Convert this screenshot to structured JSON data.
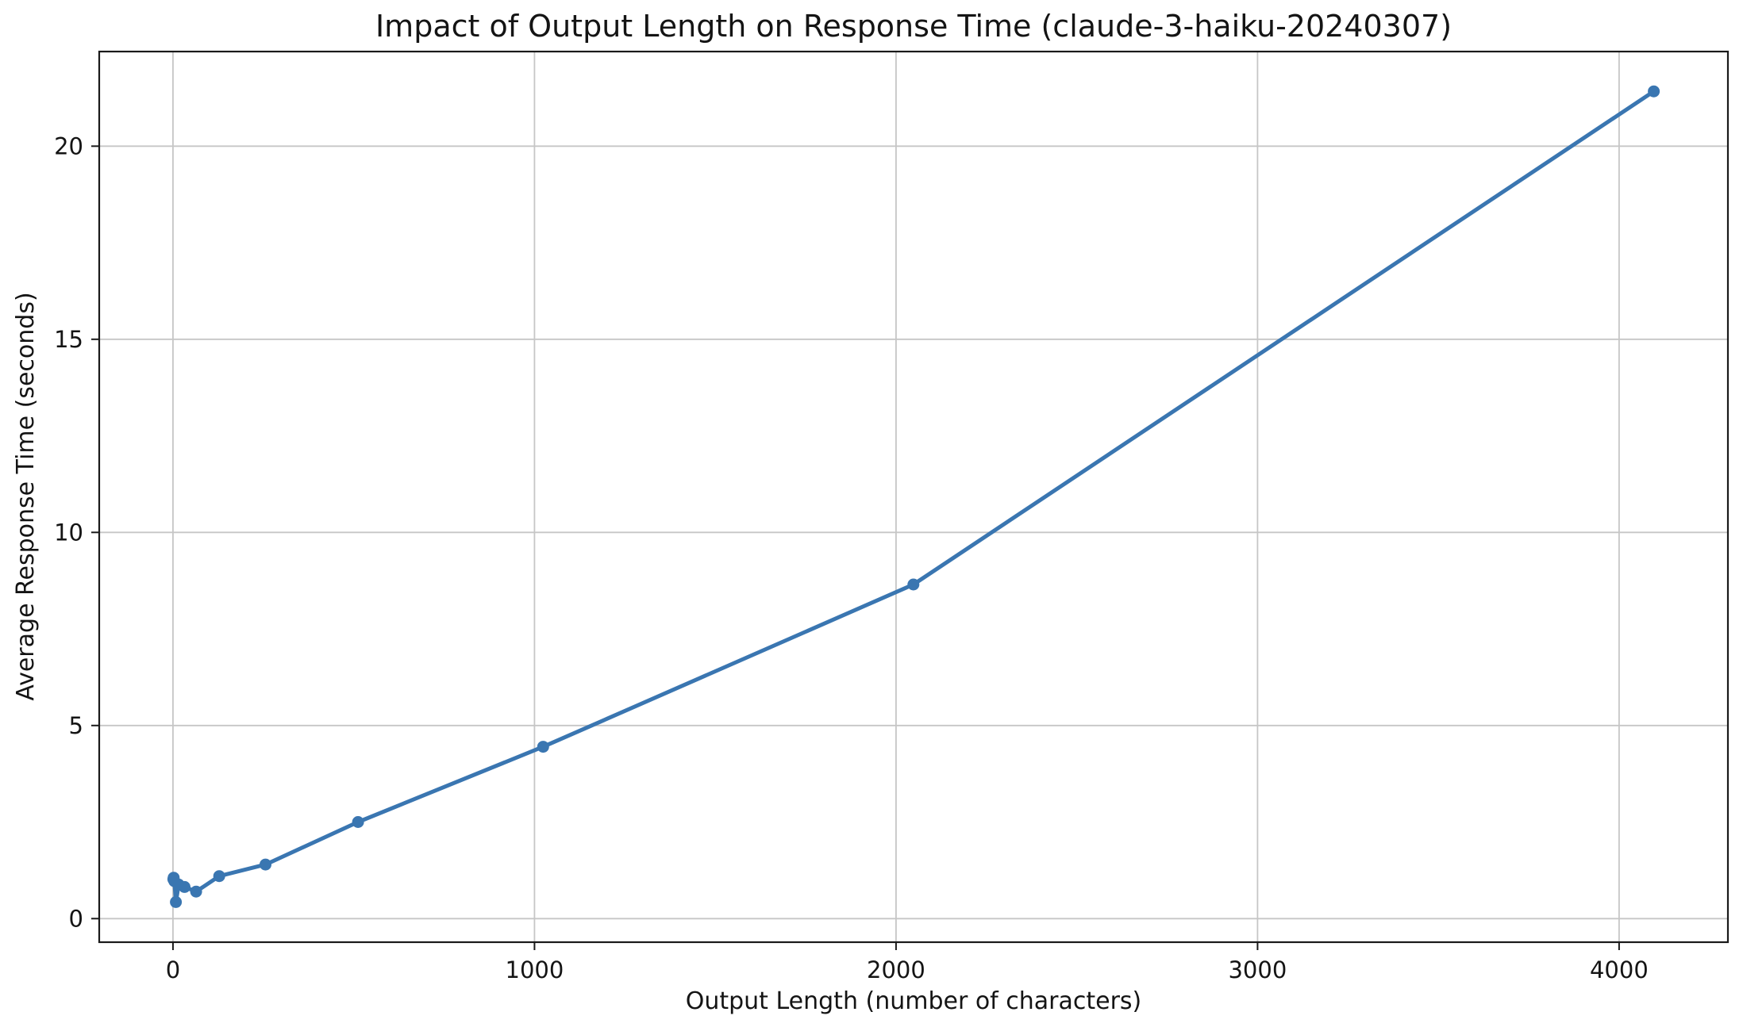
{
  "figure": {
    "background": "#ffffff",
    "accent_color": "#3a76b1"
  },
  "chart_data": {
    "type": "line",
    "title": "Impact of Output Length on Response Time (claude-3-haiku-20240307)",
    "xlabel": "Output Length (number of characters)",
    "ylabel": "Average Response Time (seconds)",
    "series": [
      {
        "name": "average-response-time",
        "color": "#3a76b1",
        "marker": "circle",
        "points": [
          [
            1,
            1.02
          ],
          [
            2,
            1.06
          ],
          [
            4,
            0.97
          ],
          [
            8,
            0.43
          ],
          [
            16,
            0.88
          ],
          [
            32,
            0.82
          ],
          [
            64,
            0.7
          ],
          [
            128,
            1.1
          ],
          [
            256,
            1.4
          ],
          [
            512,
            2.5
          ],
          [
            1024,
            4.45
          ],
          [
            2048,
            8.65
          ],
          [
            4096,
            21.42
          ]
        ]
      }
    ],
    "xlim": [
      -204,
      4301
    ],
    "ylim": [
      -0.61,
      22.45
    ],
    "xticks": [
      0,
      1000,
      2000,
      3000,
      4000
    ],
    "xtick_labels": [
      "0",
      "1000",
      "2000",
      "3000",
      "4000"
    ],
    "yticks": [
      0,
      5,
      10,
      15,
      20
    ],
    "ytick_labels": [
      "0",
      "5",
      "10",
      "15",
      "20"
    ],
    "grid": true,
    "grid_color": "#c6c6c6",
    "spine_color": "#1a1a1a",
    "tick_color": "#1a1a1a",
    "text_color": "#141414",
    "legend": null
  }
}
